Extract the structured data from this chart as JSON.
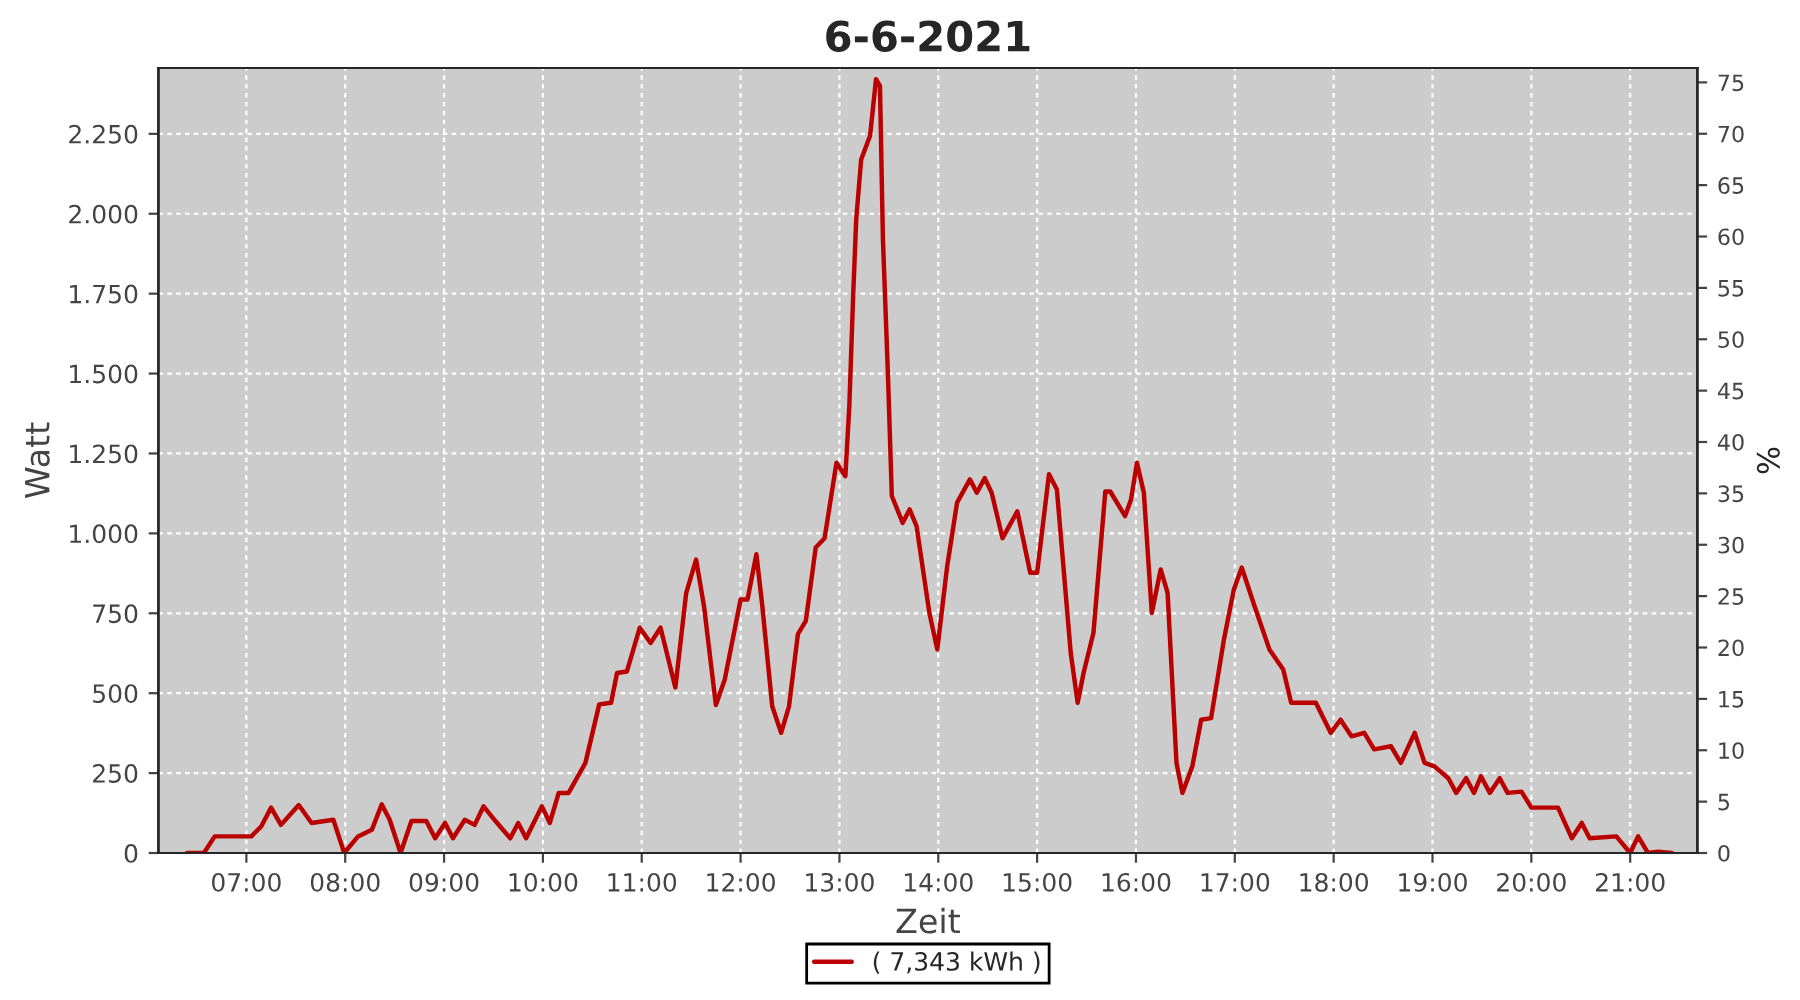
{
  "chart_data": {
    "type": "line",
    "title": "6-6-2021",
    "xlabel": "Zeit",
    "ylabel": "Watt",
    "y2label": "%",
    "x": [
      6.4,
      6.57,
      6.68,
      7.05,
      7.15,
      7.25,
      7.35,
      7.53,
      7.66,
      7.88,
      7.99,
      8.13,
      8.27,
      8.37,
      8.45,
      8.56,
      8.67,
      8.82,
      8.91,
      9.01,
      9.09,
      9.21,
      9.31,
      9.4,
      9.52,
      9.67,
      9.75,
      9.83,
      9.99,
      10.07,
      10.16,
      10.26,
      10.43,
      10.57,
      10.69,
      10.75,
      10.85,
      10.98,
      11.09,
      11.19,
      11.34,
      11.45,
      11.55,
      11.63,
      11.75,
      11.84,
      12.0,
      12.07,
      12.16,
      12.22,
      12.32,
      12.41,
      12.49,
      12.58,
      12.66,
      12.76,
      12.85,
      12.97,
      13.06,
      13.1,
      13.14,
      13.17,
      13.22,
      13.31,
      13.37,
      13.41,
      13.44,
      13.49,
      13.53,
      13.64,
      13.71,
      13.78,
      13.91,
      13.99,
      14.09,
      14.19,
      14.32,
      14.39,
      14.47,
      14.54,
      14.65,
      14.8,
      14.93,
      15.0,
      15.12,
      15.2,
      15.34,
      15.41,
      15.47,
      15.57,
      15.69,
      15.74,
      15.89,
      15.95,
      16.01,
      16.08,
      16.16,
      16.25,
      16.32,
      16.41,
      16.47,
      16.57,
      16.66,
      16.76,
      16.89,
      16.99,
      17.07,
      17.2,
      17.35,
      17.49,
      17.57,
      17.82,
      17.97,
      18.07,
      18.18,
      18.31,
      18.41,
      18.58,
      18.68,
      18.82,
      18.92,
      19.02,
      19.16,
      19.24,
      19.34,
      19.42,
      19.49,
      19.58,
      19.68,
      19.76,
      19.9,
      20.0,
      20.27,
      20.41,
      20.51,
      20.59,
      20.86,
      21.0,
      21.08,
      21.18,
      21.28,
      21.42
    ],
    "series": [
      {
        "name": "( 7,343 kWh )",
        "color": "#bb0000",
        "values": [
          0,
          0,
          52,
          52,
          83,
          142,
          88,
          150,
          94,
          104,
          0,
          52,
          73,
          152,
          104,
          0,
          100,
          100,
          46,
          94,
          46,
          104,
          88,
          146,
          100,
          46,
          94,
          46,
          146,
          94,
          188,
          188,
          282,
          465,
          470,
          563,
          568,
          705,
          657,
          705,
          518,
          814,
          918,
          772,
          463,
          543,
          793,
          793,
          935,
          772,
          459,
          376,
          459,
          685,
          726,
          956,
          985,
          1221,
          1179,
          1398,
          1753,
          1983,
          2170,
          2244,
          2421,
          2400,
          1920,
          1503,
          1117,
          1033,
          1075,
          1023,
          751,
          637,
          897,
          1096,
          1169,
          1127,
          1173,
          1127,
          985,
          1069,
          877,
          877,
          1185,
          1137,
          626,
          470,
          563,
          689,
          1131,
          1131,
          1054,
          1106,
          1221,
          1127,
          751,
          887,
          814,
          282,
          188,
          271,
          417,
          422,
          668,
          824,
          893,
          772,
          637,
          574,
          470,
          470,
          376,
          417,
          365,
          376,
          324,
          334,
          282,
          376,
          282,
          271,
          234,
          188,
          234,
          188,
          240,
          188,
          234,
          188,
          192,
          142,
          142,
          46,
          94,
          46,
          52,
          0,
          52,
          0,
          4,
          0
        ]
      }
    ],
    "xlim": [
      6.11,
      21.68
    ],
    "xticks": [
      {
        "value": 7,
        "label": "07:00"
      },
      {
        "value": 8,
        "label": "08:00"
      },
      {
        "value": 9,
        "label": "09:00"
      },
      {
        "value": 10,
        "label": "10:00"
      },
      {
        "value": 11,
        "label": "11:00"
      },
      {
        "value": 12,
        "label": "12:00"
      },
      {
        "value": 13,
        "label": "13:00"
      },
      {
        "value": 14,
        "label": "14:00"
      },
      {
        "value": 15,
        "label": "15:00"
      },
      {
        "value": 16,
        "label": "16:00"
      },
      {
        "value": 17,
        "label": "17:00"
      },
      {
        "value": 18,
        "label": "18:00"
      },
      {
        "value": 19,
        "label": "19:00"
      },
      {
        "value": 20,
        "label": "20:00"
      },
      {
        "value": 21,
        "label": "21:00"
      }
    ],
    "ylim": [
      0,
      2456
    ],
    "yticks": [
      0,
      250,
      500,
      750,
      {
        "value": 1000,
        "label": "1.000"
      },
      {
        "value": 1250,
        "label": "1.250"
      },
      {
        "value": 1500,
        "label": "1.500"
      },
      {
        "value": 1750,
        "label": "1.750"
      },
      {
        "value": 2000,
        "label": "2.000"
      },
      {
        "value": 2250,
        "label": "2.250"
      }
    ],
    "y2lim": [
      0,
      76.4
    ],
    "y2ticks": [
      0,
      5,
      10,
      15,
      20,
      25,
      30,
      35,
      40,
      45,
      50,
      55,
      60,
      65,
      70,
      75
    ],
    "grid": true,
    "legend": "bottom",
    "marker": "none",
    "line_style": "solid"
  }
}
